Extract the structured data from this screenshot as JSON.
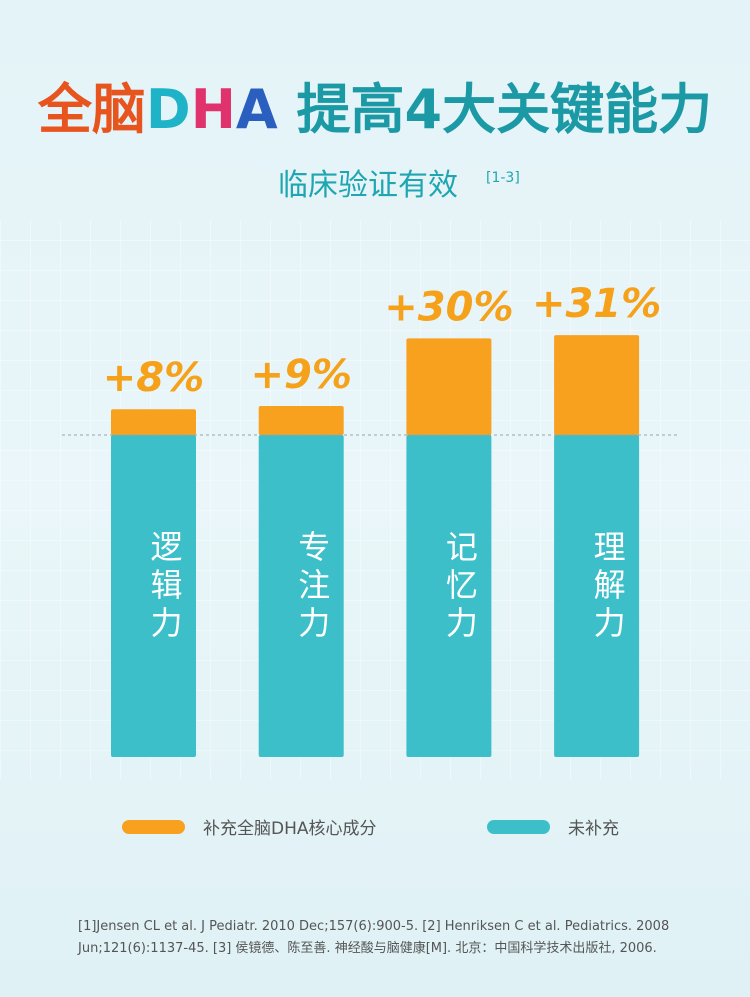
{
  "chart_data": {
    "type": "stacked_bar",
    "title": [
      "全脑",
      "D",
      "H",
      "A",
      " 提高4大关键能力"
    ],
    "subtitle": "临床验证有效",
    "subtitle_ref": "[1-3]",
    "categories": [
      "逻辑力",
      "专注力",
      "记忆力",
      "理解力"
    ],
    "series": [
      {
        "name": "未补充",
        "color": "#3dbfc9",
        "values": [
          100,
          100,
          100,
          100
        ]
      },
      {
        "name": "补充全脑DHA核心成分",
        "color": "#f7a11e",
        "values": [
          8,
          9,
          30,
          31
        ],
        "value_labels": [
          "+8%",
          "+9%",
          "+30%",
          "+31%"
        ]
      }
    ],
    "footnote": [
      "[1]Jensen CL et al.  J Pediatr. 2010 Dec;157(6):900-5.  [2] Henriksen C et al. Pediatrics. 2008",
      "Jun;121(6):1137-45.  [3] 侯镜德、陈至善. 神经酸与脑健康[M]. 北京：中国科学技术出版社, 2006."
    ]
  }
}
